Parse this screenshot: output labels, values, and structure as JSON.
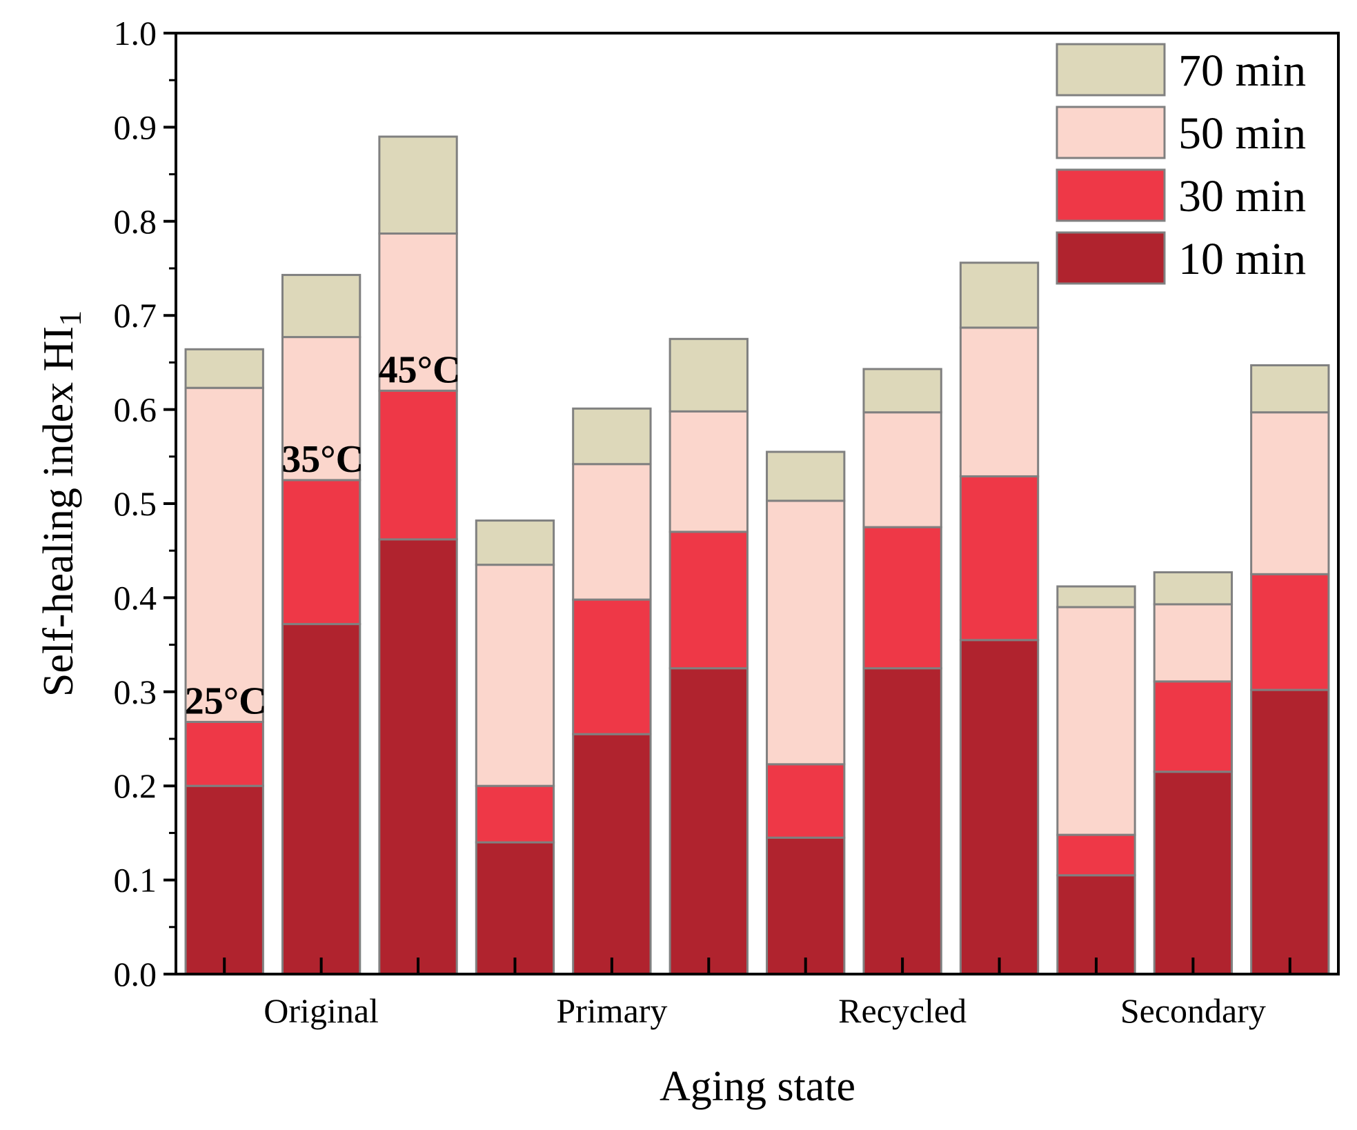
{
  "chart_data": {
    "type": "bar",
    "stacked": true,
    "title": "",
    "xlabel": "Aging state",
    "ylabel": "Self-healing index HI",
    "ylabel_subscript": "1",
    "ylim": [
      0,
      1.0
    ],
    "yticks": [
      "0.0",
      "0.1",
      "0.2",
      "0.3",
      "0.4",
      "0.5",
      "0.6",
      "0.7",
      "0.8",
      "0.9",
      "1.0"
    ],
    "groups": [
      "Original",
      "Primary",
      "Recycled",
      "Secondary"
    ],
    "bars_per_group": 3,
    "legend_position": "top-right",
    "series": [
      {
        "name": "10 min",
        "color": "#b0232e",
        "values": [
          0.2,
          0.372,
          0.462,
          0.14,
          0.255,
          0.325,
          0.145,
          0.325,
          0.355,
          0.105,
          0.215,
          0.302
        ]
      },
      {
        "name": "30 min",
        "color": "#ee3847",
        "values": [
          0.068,
          0.153,
          0.158,
          0.06,
          0.143,
          0.145,
          0.078,
          0.15,
          0.174,
          0.043,
          0.096,
          0.123
        ]
      },
      {
        "name": "50 min",
        "color": "#fbd6cc",
        "values": [
          0.355,
          0.152,
          0.167,
          0.235,
          0.144,
          0.128,
          0.28,
          0.122,
          0.158,
          0.242,
          0.082,
          0.172
        ]
      },
      {
        "name": "70 min",
        "color": "#ddd8ba",
        "values": [
          0.041,
          0.066,
          0.103,
          0.047,
          0.059,
          0.077,
          0.052,
          0.046,
          0.069,
          0.022,
          0.034,
          0.05
        ]
      }
    ],
    "annotations": [
      {
        "text": "25°C",
        "bar_index": 0,
        "y": 0.268
      },
      {
        "text": "35°C",
        "bar_index": 1,
        "y": 0.525
      },
      {
        "text": "45°C",
        "bar_index": 2,
        "y": 0.62
      }
    ]
  }
}
